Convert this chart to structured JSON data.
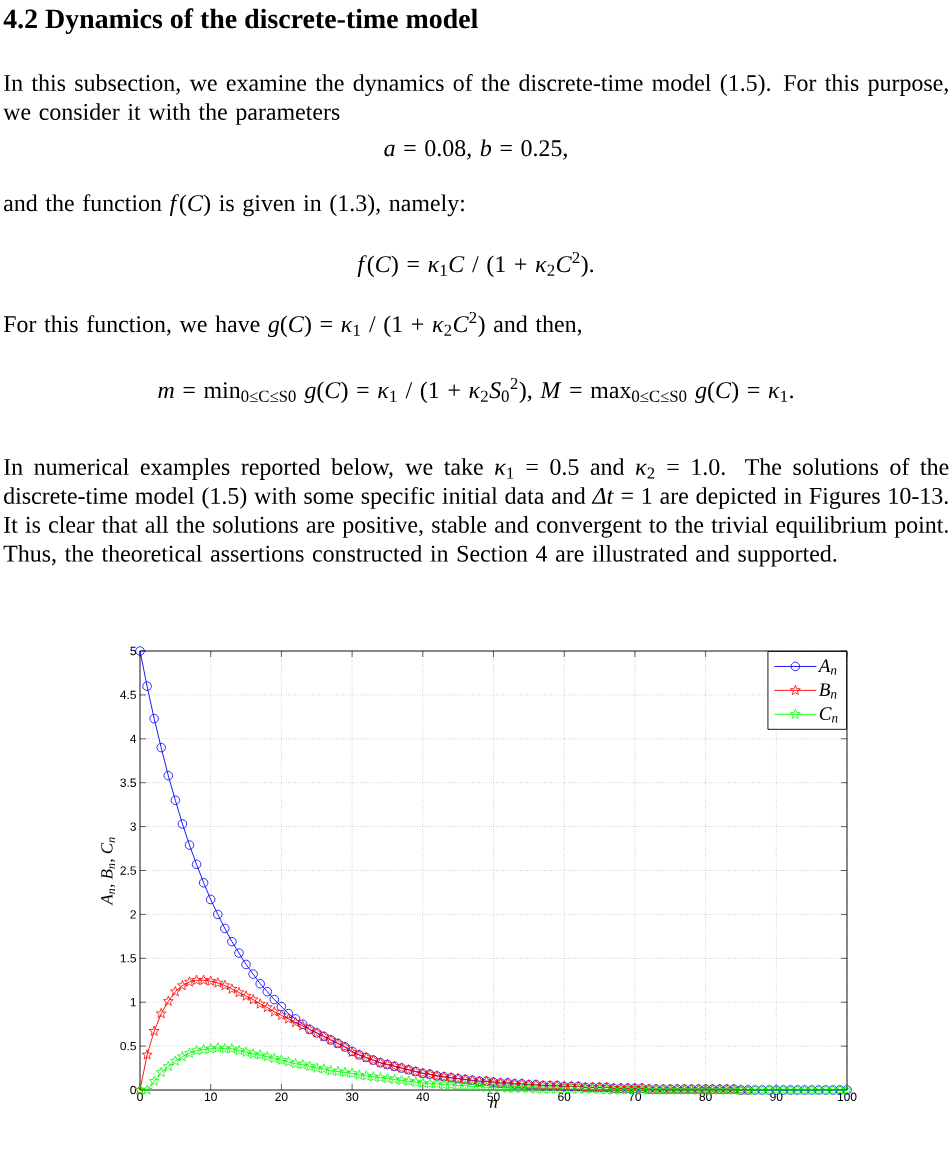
{
  "chart_data": {
    "type": "line",
    "title": "4.2 Dynamics of the discrete-time model",
    "annotations": [
      "In this subsection, we examine the dynamics of the discrete-time model (1.5). For this purpose, we consider it with the parameters",
      "*a* = 0.08, *b* = 0.25,",
      "and the function *f*(*C*) is given in (1.3), namely:",
      "*f*(*C*) = *κ*$_{1}$*C* / (1 + *κ*$_{2}$*C*$^{2}$).",
      "For this function, we have *g*(*C*) = *κ*$_{1}$ / (1 + *κ*$_{2}$*C*$^{2}$) and then,",
      "*m* = min$_{0≤C≤S0}$ *g*(*C*) = *κ*$_{1}$ / (1 + *κ*$_{2}$*S*$_{0}$$^{2}$), *M* = max$_{0≤C≤S0}$ *g*(*C*) = *κ*$_{1}$.",
      "In numerical examples reported below, we take *κ*$_{1}$ = 0.5 and *κ*$_{2}$ = 1.0. The solutions of the discrete-time model (1.5) with some specific initial data and *Δt* = 1 are depicted in Figures 10-13. It is clear that all the solutions are positive, stable and convergent to the trivial equilibrium point. Thus, the theoretical assertions constructed in Section 4 are illustrated and supported."
    ],
    "xlabel": "n",
    "ylabel": "A$_{n}$, B$_{n}$, C$_{n}$",
    "x": [
      0,
      1,
      2,
      3,
      4,
      5,
      6,
      7,
      8,
      9,
      10,
      11,
      12,
      13,
      14,
      15,
      16,
      17,
      18,
      19,
      20,
      21,
      22,
      23,
      24,
      25,
      26,
      27,
      28,
      29,
      30,
      31,
      32,
      33,
      34,
      35,
      36,
      37,
      38,
      39,
      40,
      41,
      42,
      43,
      44,
      45,
      46,
      47,
      48,
      49,
      50,
      51,
      52,
      53,
      54,
      55,
      56,
      57,
      58,
      59,
      60,
      61,
      62,
      63,
      64,
      65,
      66,
      67,
      68,
      69,
      70,
      71,
      72,
      73,
      74,
      75,
      76,
      77,
      78,
      79,
      80,
      81,
      82,
      83,
      84,
      85,
      86,
      87,
      88,
      89,
      90,
      91,
      92,
      93,
      94,
      95,
      96,
      97,
      98,
      99,
      100
    ],
    "series": [
      {
        "name": "A$_{n}$",
        "color": "#0000ff",
        "marker": "circle",
        "values": [
          5.0,
          4.6,
          4.23,
          3.9,
          3.58,
          3.3,
          3.03,
          2.79,
          2.57,
          2.36,
          2.17,
          2.0,
          1.84,
          1.69,
          1.56,
          1.43,
          1.32,
          1.21,
          1.12,
          1.03,
          0.95,
          0.87,
          0.81,
          0.75,
          0.69,
          0.65,
          0.61,
          0.57,
          0.53,
          0.49,
          0.44,
          0.4,
          0.37,
          0.34,
          0.31,
          0.29,
          0.27,
          0.25,
          0.23,
          0.21,
          0.19,
          0.18,
          0.16,
          0.15,
          0.14,
          0.13,
          0.12,
          0.11,
          0.1,
          0.1,
          0.09,
          0.08,
          0.08,
          0.07,
          0.07,
          0.06,
          0.06,
          0.05,
          0.05,
          0.05,
          0.04,
          0.04,
          0.04,
          0.03,
          0.03,
          0.03,
          0.03,
          0.02,
          0.02,
          0.02,
          0.02,
          0.02,
          0.01,
          0.01,
          0.01,
          0.01,
          0.01,
          0.01,
          0.01,
          0.01,
          0.01,
          0.01,
          0.01,
          0.01,
          0.01,
          0,
          0,
          0,
          0,
          0,
          0,
          0,
          0,
          0,
          0,
          0,
          0,
          0,
          0,
          0,
          0
        ]
      },
      {
        "name": "B$_{n}$",
        "color": "#ff0000",
        "marker": "star",
        "values": [
          0,
          0.4,
          0.67,
          0.87,
          1.01,
          1.12,
          1.19,
          1.23,
          1.25,
          1.25,
          1.24,
          1.22,
          1.19,
          1.15,
          1.11,
          1.07,
          1.03,
          0.98,
          0.94,
          0.89,
          0.85,
          0.81,
          0.77,
          0.73,
          0.69,
          0.65,
          0.61,
          0.57,
          0.53,
          0.49,
          0.43,
          0.4,
          0.37,
          0.34,
          0.31,
          0.29,
          0.27,
          0.25,
          0.23,
          0.21,
          0.19,
          0.18,
          0.16,
          0.15,
          0.14,
          0.13,
          0.12,
          0.11,
          0.1,
          0.1,
          0.09,
          0.08,
          0.08,
          0.07,
          0.07,
          0.06,
          0.06,
          0.05,
          0.05,
          0.05,
          0.04,
          0.04,
          0.04,
          0.03,
          0.03,
          0.03,
          0.03,
          0.02,
          0.02,
          0.02,
          0.02,
          0.02,
          0.01,
          0.01,
          0.01,
          0.01,
          0.01,
          0.01,
          0.01,
          0.01,
          0.01,
          0.01,
          0.01,
          0.01,
          0.01,
          0,
          0,
          null,
          null,
          null,
          null,
          null,
          null,
          null,
          null,
          null,
          null,
          null,
          null,
          null,
          null
        ]
      },
      {
        "name": "C$_{n}$",
        "color": "#00ff00",
        "marker": "star",
        "values": [
          0,
          0,
          0.1,
          0.2,
          0.27,
          0.33,
          0.38,
          0.42,
          0.45,
          0.46,
          0.47,
          0.48,
          0.47,
          0.47,
          0.45,
          0.43,
          0.41,
          0.4,
          0.38,
          0.36,
          0.34,
          0.32,
          0.3,
          0.29,
          0.27,
          0.25,
          0.24,
          0.22,
          0.21,
          0.2,
          0.19,
          0.17,
          0.16,
          0.15,
          0.14,
          0.13,
          0.12,
          0.11,
          0.1,
          0.09,
          0.08,
          0.07,
          0.07,
          0.06,
          0.06,
          0.05,
          0.05,
          0.04,
          0.04,
          0.03,
          0.03,
          0.03,
          0.02,
          0.02,
          0.02,
          0.02,
          0.01,
          0.01,
          0.01,
          0.01,
          0.01,
          0.01,
          0.01,
          0.01,
          0.01,
          0.01,
          0,
          0,
          0,
          0,
          0,
          0,
          0,
          0,
          0,
          0,
          0,
          0,
          0,
          0,
          0,
          0,
          0,
          0,
          0,
          0,
          0,
          0,
          0,
          0,
          0,
          0,
          0,
          0,
          0,
          0,
          0,
          0,
          0,
          0,
          0
        ]
      }
    ],
    "xlim": [
      0,
      100
    ],
    "ylim": [
      0,
      5
    ],
    "xticks": [
      0,
      10,
      20,
      30,
      40,
      50,
      60,
      70,
      80,
      90,
      100
    ],
    "yticks": [
      0,
      0.5,
      1,
      1.5,
      2,
      2.5,
      3,
      3.5,
      4,
      4.5,
      5
    ],
    "grid": true,
    "legend": "top right",
    "line_style": "solid"
  }
}
